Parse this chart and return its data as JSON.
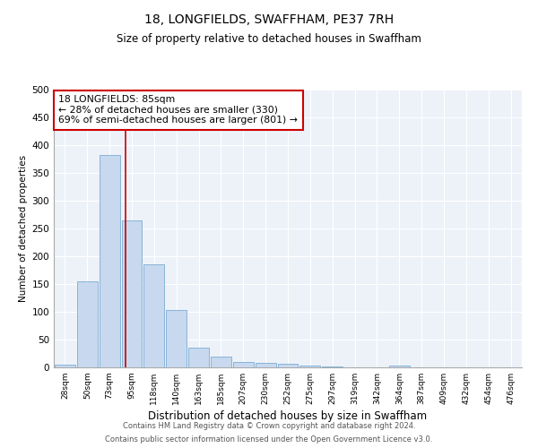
{
  "title": "18, LONGFIELDS, SWAFFHAM, PE37 7RH",
  "subtitle": "Size of property relative to detached houses in Swaffham",
  "xlabel": "Distribution of detached houses by size in Swaffham",
  "ylabel": "Number of detached properties",
  "bar_color": "#c8d8ee",
  "bar_edge_color": "#7aadd4",
  "categories": [
    "28sqm",
    "50sqm",
    "73sqm",
    "95sqm",
    "118sqm",
    "140sqm",
    "163sqm",
    "185sqm",
    "207sqm",
    "230sqm",
    "252sqm",
    "275sqm",
    "297sqm",
    "319sqm",
    "342sqm",
    "364sqm",
    "387sqm",
    "409sqm",
    "432sqm",
    "454sqm",
    "476sqm"
  ],
  "values": [
    5,
    155,
    383,
    265,
    185,
    103,
    35,
    20,
    10,
    8,
    7,
    4,
    2,
    0,
    0,
    4,
    0,
    0,
    0,
    0,
    0
  ],
  "ylim": [
    0,
    500
  ],
  "yticks": [
    0,
    50,
    100,
    150,
    200,
    250,
    300,
    350,
    400,
    450,
    500
  ],
  "vline_x": 2.73,
  "vline_color": "#cc0000",
  "annotation_text": "18 LONGFIELDS: 85sqm\n← 28% of detached houses are smaller (330)\n69% of semi-detached houses are larger (801) →",
  "annotation_box_color": "#ffffff",
  "annotation_box_edge": "#cc0000",
  "footer_line1": "Contains HM Land Registry data © Crown copyright and database right 2024.",
  "footer_line2": "Contains public sector information licensed under the Open Government Licence v3.0.",
  "background_color": "#edf2f9",
  "fig_background": "#ffffff",
  "grid_color": "#ffffff"
}
